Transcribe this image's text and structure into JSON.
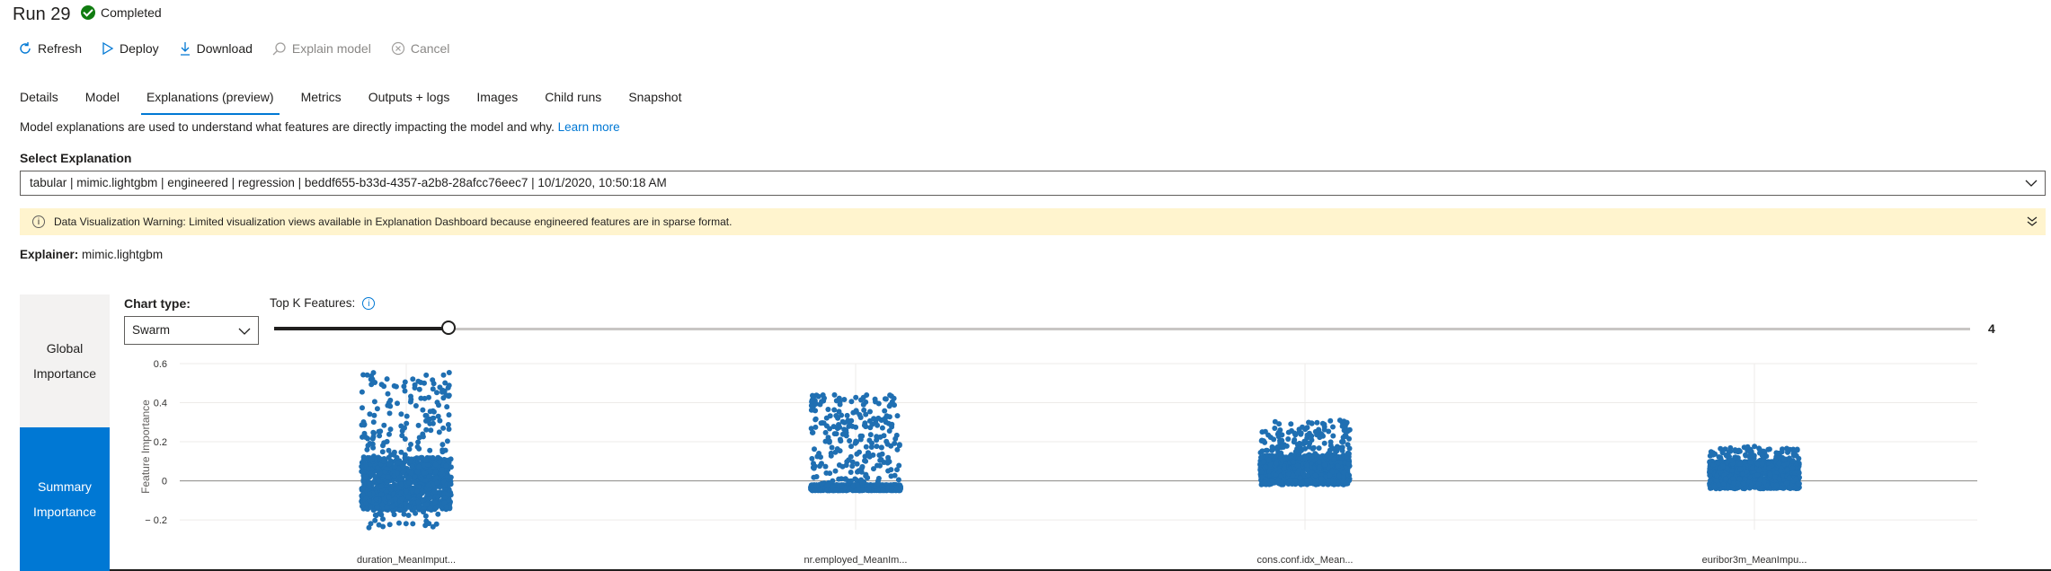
{
  "header": {
    "title": "Run 29",
    "status": "Completed"
  },
  "toolbar": {
    "refresh": "Refresh",
    "deploy": "Deploy",
    "download": "Download",
    "explain_model": "Explain model",
    "cancel": "Cancel"
  },
  "tabs": [
    {
      "label": "Details"
    },
    {
      "label": "Model"
    },
    {
      "label": "Explanations (preview)",
      "active": true
    },
    {
      "label": "Metrics"
    },
    {
      "label": "Outputs + logs"
    },
    {
      "label": "Images"
    },
    {
      "label": "Child runs"
    },
    {
      "label": "Snapshot"
    }
  ],
  "description": {
    "text": "Model explanations are used to understand what features are directly impacting the model and why.",
    "link": "Learn more"
  },
  "select_explanation": {
    "label": "Select Explanation",
    "value": "tabular | mimic.lightgbm | engineered | regression | beddf655-b33d-4357-a2b8-28afcc76eec7 | 10/1/2020, 10:50:18 AM"
  },
  "warning": {
    "title": "Data Visualization Warning:",
    "text": "Limited visualization views available in Explanation Dashboard because engineered features are in sparse format."
  },
  "explainer": {
    "label": "Explainer:",
    "value": "mimic.lightgbm"
  },
  "nav": {
    "global": [
      "Global",
      "Importance"
    ],
    "summary": [
      "Summary",
      "Importance"
    ]
  },
  "controls": {
    "chart_type_label": "Chart type:",
    "chart_type_value": "Swarm",
    "topk_label": "Top K Features:",
    "topk_value": "4"
  },
  "colors": {
    "accent": "#0078d4",
    "point": "#1f6fb2",
    "warning_bg": "#fff4ce",
    "success": "#107c10"
  },
  "chart_data": {
    "type": "scatter",
    "subtype": "swarm",
    "ylabel": "Feature Importance",
    "ylim": [
      -0.25,
      0.6
    ],
    "yticks": [
      -0.2,
      0,
      0.2,
      0.4,
      0.6
    ],
    "categories": [
      "duration_MeanImput...",
      "nr.employed_MeanIm...",
      "cons.conf.idx_Mean...",
      "euribor3m_MeanImpu..."
    ],
    "series": [
      {
        "category": "duration_MeanImput...",
        "min": -0.24,
        "max": 0.56,
        "dense_min": -0.15,
        "dense_max": 0.12
      },
      {
        "category": "nr.employed_MeanIm...",
        "min": -0.05,
        "max": 0.44,
        "dense_min": -0.05,
        "dense_max": -0.02
      },
      {
        "category": "cons.conf.idx_Mean...",
        "min": -0.02,
        "max": 0.31,
        "dense_min": -0.02,
        "dense_max": 0.13
      },
      {
        "category": "euribor3m_MeanImpu...",
        "min": -0.04,
        "max": 0.18,
        "dense_min": -0.04,
        "dense_max": 0.1
      }
    ],
    "grid": true,
    "legend": "none"
  }
}
